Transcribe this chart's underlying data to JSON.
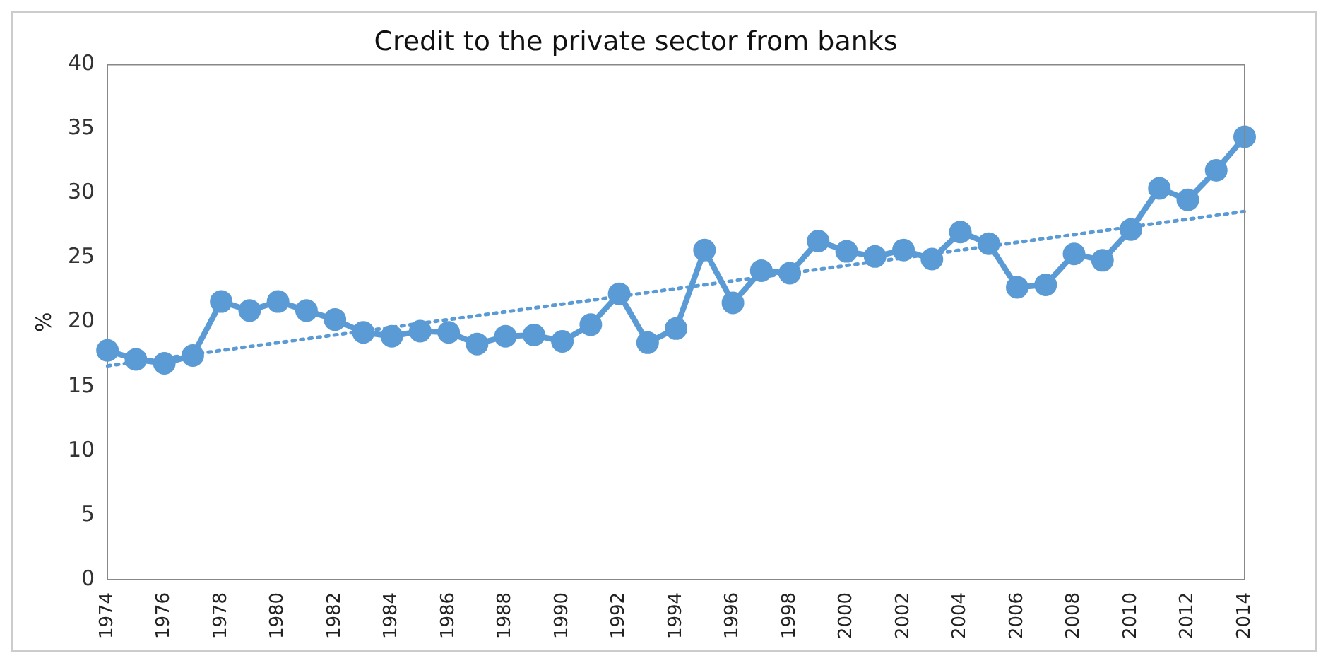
{
  "chart_data": {
    "type": "line",
    "title": "Credit to the private sector from banks",
    "ylabel": "%",
    "categories": [
      "1974",
      null,
      "1976",
      null,
      "1978",
      null,
      "1980",
      null,
      "1982",
      null,
      "1984",
      null,
      "1986",
      null,
      "1988",
      null,
      "1990",
      null,
      "1992",
      null,
      "1994",
      null,
      "1996",
      null,
      "1998",
      null,
      "2000",
      null,
      "2002",
      null,
      "2004",
      null,
      "2006",
      null,
      "2008",
      null,
      "2010",
      null,
      "2012",
      null,
      "2014"
    ],
    "series": [
      {
        "color": "#5b9bd5",
        "marker": "circle",
        "line_style": "solid",
        "values": [
          17.8,
          17.1,
          16.8,
          17.4,
          21.6,
          20.9,
          21.6,
          20.9,
          20.2,
          19.2,
          18.9,
          19.3,
          19.2,
          18.3,
          18.9,
          19.0,
          18.5,
          19.8,
          22.2,
          18.4,
          19.5,
          25.6,
          21.5,
          24.0,
          23.8,
          26.3,
          25.5,
          25.1,
          25.6,
          24.9,
          27.0,
          26.1,
          22.7,
          22.9,
          25.3,
          24.8,
          27.2,
          30.4,
          29.5,
          31.8,
          34.4
        ]
      },
      {
        "color": "#5b9bd5",
        "marker": "none",
        "line_style": "dotted",
        "values": [
          16.6,
          null,
          null,
          null,
          null,
          null,
          null,
          null,
          null,
          null,
          null,
          null,
          null,
          null,
          null,
          null,
          null,
          null,
          null,
          null,
          null,
          null,
          null,
          null,
          null,
          null,
          null,
          null,
          null,
          null,
          null,
          null,
          null,
          null,
          null,
          null,
          null,
          null,
          null,
          null,
          28.6
        ]
      }
    ],
    "ylim": [
      0,
      40
    ],
    "yticks": [
      0,
      5,
      10,
      15,
      20,
      25,
      30,
      35,
      40
    ],
    "grid": false,
    "legend": false
  }
}
